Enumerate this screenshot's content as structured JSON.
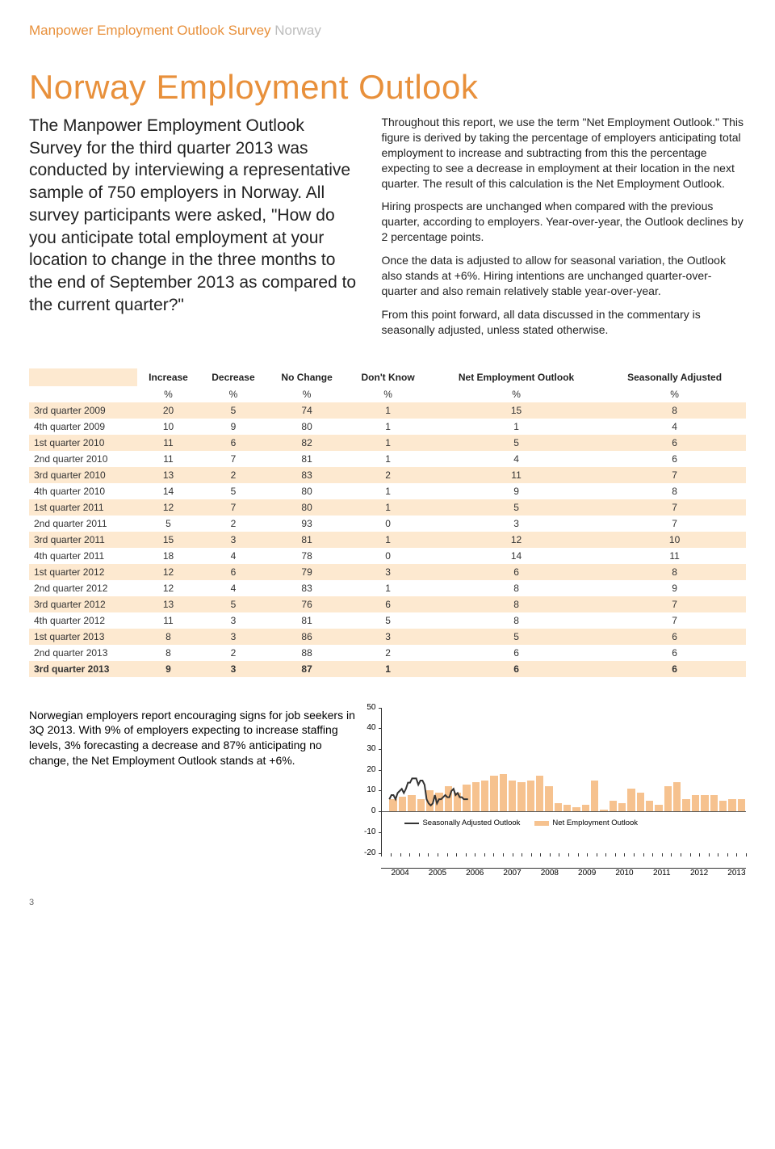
{
  "header": {
    "orange": "Manpower Employment Outlook Survey",
    "grey": "Norway"
  },
  "title": "Norway Employment Outlook",
  "intro_left": "The Manpower Employment Outlook Survey for the third quarter 2013 was conducted by interviewing a representative sample of 750 employers in Norway. All survey participants were asked, \"How do you anticipate total employment at your location to change in the three months to the end of September 2013 as compared to the current quarter?\"",
  "intro_right": [
    "Throughout this report, we use the term \"Net Employment Outlook.\" This figure is derived by taking the percentage of employers anticipating total employment to increase and subtracting from this the percentage expecting to see a decrease in employment at their location in the next quarter. The result of this calculation is the Net Employment Outlook.",
    "Hiring prospects are unchanged when compared with the previous quarter, according to employers. Year-over-year, the Outlook declines by 2 percentage points.",
    "Once the data is adjusted to allow for seasonal variation, the Outlook also stands at +6%. Hiring intentions are unchanged quarter-over-quarter and also remain relatively stable year-over-year.",
    "From this point forward, all data discussed in the commentary is seasonally adjusted, unless stated otherwise."
  ],
  "table": {
    "columns": [
      "",
      "Increase",
      "Decrease",
      "No Change",
      "Don't Know",
      "Net Employment Outlook",
      "Seasonally Adjusted"
    ],
    "pct_row": [
      "",
      "%",
      "%",
      "%",
      "%",
      "%",
      "%"
    ],
    "rows": [
      {
        "label": "3rd quarter 2009",
        "vals": [
          20,
          5,
          74,
          1,
          15,
          8
        ],
        "shade": 0,
        "bold": false
      },
      {
        "label": "4th quarter 2009",
        "vals": [
          10,
          9,
          80,
          1,
          1,
          4
        ],
        "shade": 1,
        "bold": false
      },
      {
        "label": "1st quarter 2010",
        "vals": [
          11,
          6,
          82,
          1,
          5,
          6
        ],
        "shade": 0,
        "bold": false
      },
      {
        "label": "2nd quarter 2010",
        "vals": [
          11,
          7,
          81,
          1,
          4,
          6
        ],
        "shade": 1,
        "bold": false
      },
      {
        "label": "3rd quarter 2010",
        "vals": [
          13,
          2,
          83,
          2,
          11,
          7
        ],
        "shade": 0,
        "bold": false
      },
      {
        "label": "4th quarter 2010",
        "vals": [
          14,
          5,
          80,
          1,
          9,
          8
        ],
        "shade": 1,
        "bold": false
      },
      {
        "label": "1st quarter 2011",
        "vals": [
          12,
          7,
          80,
          1,
          5,
          7
        ],
        "shade": 0,
        "bold": false
      },
      {
        "label": "2nd quarter 2011",
        "vals": [
          5,
          2,
          93,
          0,
          3,
          7
        ],
        "shade": 1,
        "bold": false
      },
      {
        "label": "3rd quarter 2011",
        "vals": [
          15,
          3,
          81,
          1,
          12,
          10
        ],
        "shade": 0,
        "bold": false
      },
      {
        "label": "4th quarter 2011",
        "vals": [
          18,
          4,
          78,
          0,
          14,
          11
        ],
        "shade": 1,
        "bold": false
      },
      {
        "label": "1st quarter 2012",
        "vals": [
          12,
          6,
          79,
          3,
          6,
          8
        ],
        "shade": 0,
        "bold": false
      },
      {
        "label": "2nd quarter 2012",
        "vals": [
          12,
          4,
          83,
          1,
          8,
          9
        ],
        "shade": 1,
        "bold": false
      },
      {
        "label": "3rd quarter 2012",
        "vals": [
          13,
          5,
          76,
          6,
          8,
          7
        ],
        "shade": 0,
        "bold": false
      },
      {
        "label": "4th quarter 2012",
        "vals": [
          11,
          3,
          81,
          5,
          8,
          7
        ],
        "shade": 1,
        "bold": false
      },
      {
        "label": "1st quarter 2013",
        "vals": [
          8,
          3,
          86,
          3,
          5,
          6
        ],
        "shade": 0,
        "bold": false
      },
      {
        "label": "2nd quarter 2013",
        "vals": [
          8,
          2,
          88,
          2,
          6,
          6
        ],
        "shade": 1,
        "bold": false
      },
      {
        "label": "3rd quarter 2013",
        "vals": [
          9,
          3,
          87,
          1,
          6,
          6
        ],
        "shade": 0,
        "bold": true
      }
    ],
    "shade_colors": [
      "#fde9d0",
      "#ffffff"
    ]
  },
  "bottom_text": "Norwegian employers report encouraging signs for job seekers in 3Q 2013. With 9% of employers expecting to increase staffing levels, 3% forecasting a decrease and 87% anticipating no change, the Net Employment Outlook stands at +6%.",
  "chart": {
    "type": "bar+line",
    "ymin": -20,
    "ymax": 50,
    "ytick_step": 10,
    "yticks": [
      50,
      40,
      30,
      20,
      10,
      0,
      -10,
      -20
    ],
    "bar_color": "#f6c28f",
    "line_color": "#333333",
    "years": [
      2004,
      2005,
      2006,
      2007,
      2008,
      2009,
      2010,
      2011,
      2012,
      2013
    ],
    "bar_values": [
      6,
      7,
      8,
      6,
      10,
      9,
      12,
      9,
      13,
      14,
      15,
      17,
      18,
      15,
      14,
      15,
      17,
      12,
      4,
      3,
      2,
      3,
      15,
      1,
      5,
      4,
      11,
      9,
      5,
      3,
      12,
      14,
      6,
      8,
      8,
      8,
      5,
      6,
      6
    ],
    "line_values": [
      6,
      8,
      8,
      6,
      9,
      10,
      11,
      9,
      11,
      14,
      14,
      16,
      16,
      16,
      13,
      15,
      15,
      13,
      6,
      4,
      3,
      4,
      8,
      4,
      6,
      6,
      7,
      8,
      7,
      7,
      10,
      11,
      8,
      9,
      7,
      7,
      6,
      6,
      6
    ],
    "legend": [
      {
        "label": "Seasonally Adjusted Outlook",
        "type": "line"
      },
      {
        "label": "Net Employment Outlook",
        "type": "bar"
      }
    ]
  },
  "page_number": "3"
}
